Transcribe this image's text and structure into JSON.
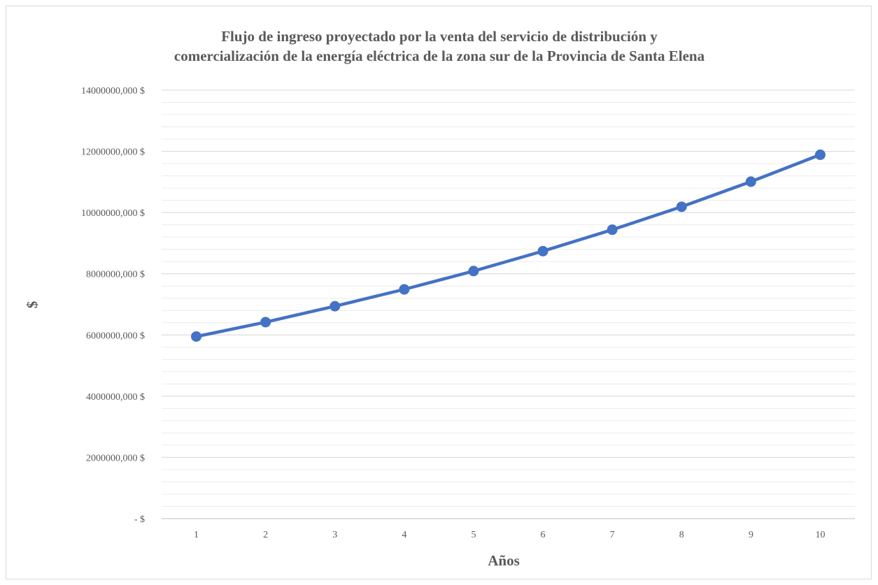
{
  "chart_data": {
    "type": "line",
    "title": [
      "Flujo de ingreso proyectado por la venta del servicio de distribución y",
      "comercialización de la energía eléctrica de la zona sur de la Provincia de Santa Elena"
    ],
    "xlabel": "Años",
    "ylabel": "$",
    "categories": [
      "1",
      "2",
      "3",
      "4",
      "5",
      "6",
      "7",
      "8",
      "9",
      "10"
    ],
    "series": [
      {
        "values": [
          5950000,
          6420000,
          6940000,
          7490000,
          8090000,
          8740000,
          9440000,
          10190000,
          11010000,
          11890000
        ]
      }
    ],
    "y_ticks": [
      0,
      2000000,
      4000000,
      6000000,
      8000000,
      10000000,
      12000000,
      14000000
    ],
    "y_tick_labels": [
      "-  $",
      "2000000,000 $",
      "4000000,000 $",
      "6000000,000 $",
      "8000000,000 $",
      "10000000,000 $",
      "12000000,000 $",
      "14000000,000 $"
    ],
    "ylim": [
      0,
      14000000
    ],
    "grid": true,
    "minor_grid": true,
    "legend": "none",
    "colors": {
      "line": "#4472c4",
      "grid_major": "#d9d9d9",
      "grid_minor": "#ececec",
      "axis": "#bfbfbf",
      "text": "#595959"
    }
  }
}
